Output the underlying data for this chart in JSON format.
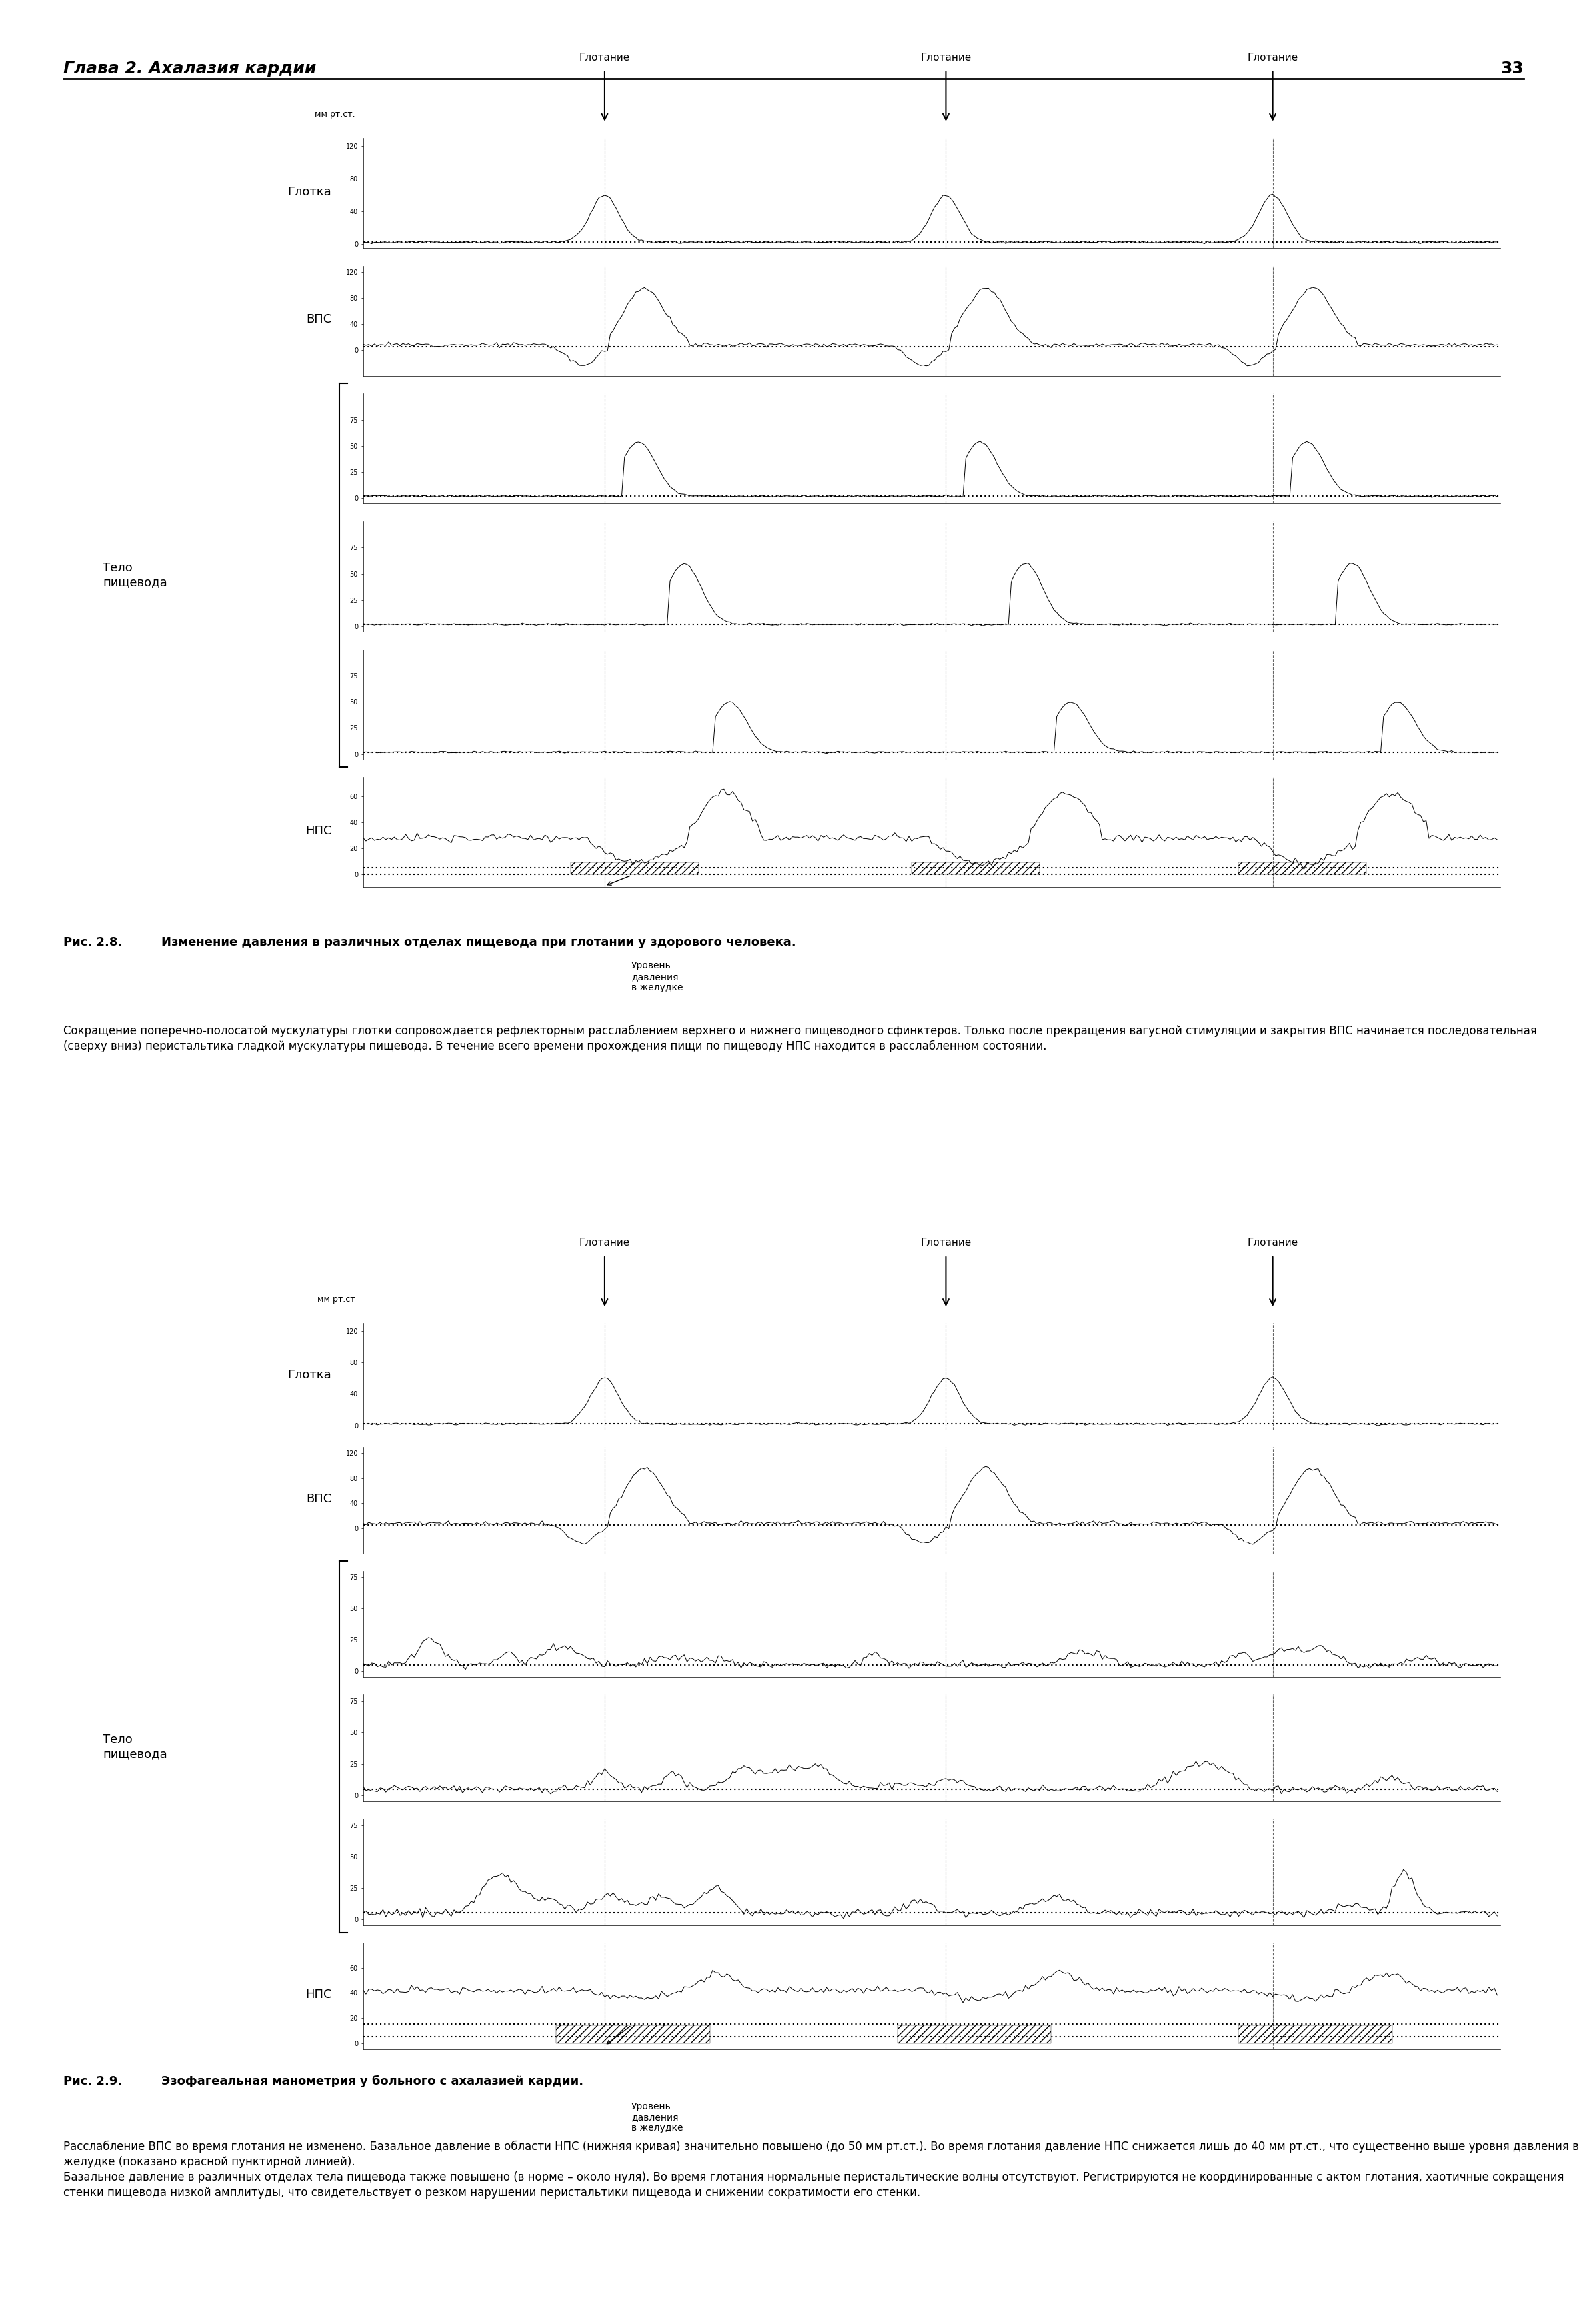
{
  "page_header": "Глава 2. Ахалазия кардии",
  "page_number": "33",
  "fig1_title": "Рис. 2.8.",
  "fig1_caption_bold": "Изменение давления в различных отделах пищевода при глотании у здорового человека.",
  "fig1_caption_normal": "Сокращение поперечно-полосатой мускулатуры глотки сопровождается рефлекторным расслаблением верхнего и нижнего пищеводного сфинктеров. Только после прекращения вагусной стимуляции и закрытия ВПС начинается последовательная (сверху вниз) перистальтика гладкой мускулатуры пищевода. В течение всего времени прохождения пищи по пищеводу НПС находится в расслабленном состоянии.",
  "fig2_title": "Рис. 2.9.",
  "fig2_caption_bold": "Эзофагеальная манометрия у больного с ахалазией кардии.",
  "fig2_caption_normal": "Расслабление ВПС во время глотания не изменено. Базальное давление в области НПС (нижняя кривая) значительно повышено (до 50 мм рт.ст.). Во время глотания давление НПС снижается лишь до 40 мм рт.ст., что существенно выше уровня давления в желудке (показано красной пунктирной линией).\nБазальное давление в различных отделах тела пищевода также повышено (в норме – около нуля). Во время глотания нормальные перистальтические волны отсутствуют. Регистрируются не координированные с актом глотания, хаотичные сокращения стенки пищевода низкой амплитуды, что свидетельствует о резком нарушении перистальтики пищевода и снижении сократимости его стенки.",
  "swallow_label": "Глотание",
  "mm_label": "мм рт.ст.",
  "mm_label2": "мм рт.ст",
  "stomach_pressure_label": "Уровень\nдавления\nв желудке",
  "glotka_label": "Глотка",
  "vps_label": "ВПС",
  "telo_label": "Тело\nпищевода",
  "nps_label": "НПС",
  "bg_color": "#ffffff",
  "line_color": "#000000"
}
